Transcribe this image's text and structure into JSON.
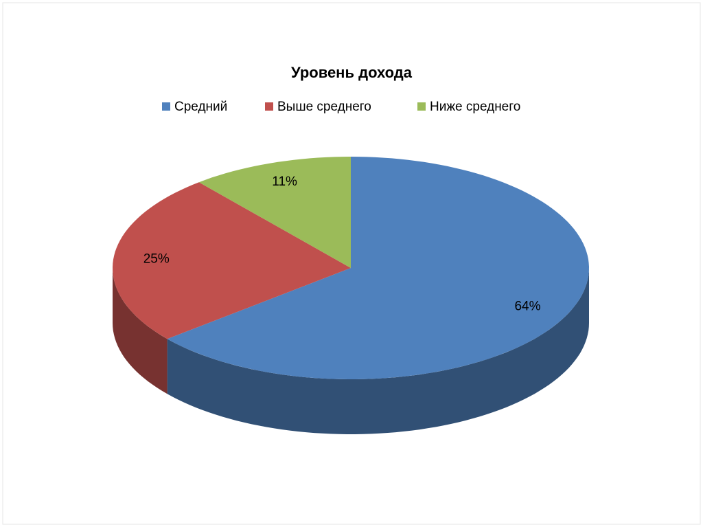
{
  "chart_data": {
    "type": "pie",
    "title": "Уровень дохода",
    "categories": [
      "Средний",
      "Выше среднего",
      "Ниже среднего"
    ],
    "values": [
      64,
      25,
      11
    ],
    "value_labels": [
      "64%",
      "25%",
      "11%"
    ],
    "colors": [
      "#4f81bd",
      "#c0504d",
      "#9bbb59"
    ],
    "legend": "top"
  }
}
